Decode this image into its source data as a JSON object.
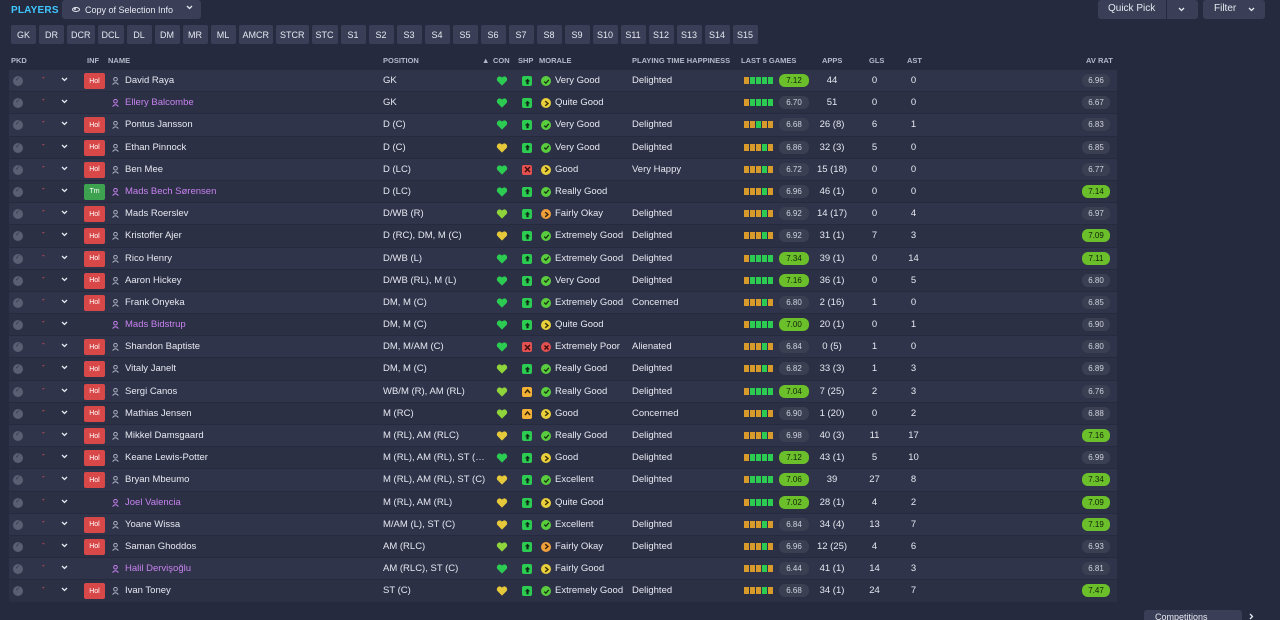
{
  "title": "PLAYERS",
  "view_selector": {
    "label": "Copy of Selection Info",
    "icon": "eye-icon"
  },
  "quick_pick": {
    "label": "Quick Pick"
  },
  "filter": {
    "label": "Filter"
  },
  "position_filters": [
    "GK",
    "DR",
    "DCR",
    "DCL",
    "DL",
    "DM",
    "MR",
    "ML",
    "AMCR",
    "STCR",
    "STC",
    "S1",
    "S2",
    "S3",
    "S4",
    "S5",
    "S6",
    "S7",
    "S8",
    "S9",
    "S10",
    "S11",
    "S12",
    "S13",
    "S14",
    "S15"
  ],
  "columns": {
    "pkd": "PKD",
    "inf": "INF",
    "name": "NAME",
    "position": "POSITION",
    "con": "CON",
    "shp": "SHP",
    "morale": "MORALE",
    "playing_time": "PLAYING TIME HAPPINESS",
    "last5": "LAST 5 GAMES",
    "apps": "APPS",
    "gls": "GLS",
    "ast": "AST",
    "av_rat": "AV RAT"
  },
  "colors": {
    "accent": "#3fc6ff",
    "row_bg": "#30344a",
    "purple_name": "#c782f0",
    "inf_holiday": "#d84848",
    "inf_team": "#3ea351",
    "rating_high": "#6bbf2b",
    "game_bar_green": "#2ccb52",
    "game_bar_amber": "#d89a2a"
  },
  "players": [
    {
      "inf": "Hol",
      "name": "David Raya",
      "purple": false,
      "position": "GK",
      "con": "green",
      "shp": "g",
      "morale_icon": "g",
      "morale": "Very Good",
      "happiness": "Delighted",
      "games": [
        "a",
        "g",
        "g",
        "g",
        "g"
      ],
      "last_rating": "7.12",
      "apps": "44",
      "gls": "0",
      "ast": "0",
      "av_rat": "6.96"
    },
    {
      "inf": "",
      "name": "Ellery Balcombe",
      "purple": true,
      "position": "GK",
      "con": "green",
      "shp": "g",
      "morale_icon": "y",
      "morale": "Quite Good",
      "happiness": "",
      "games": [
        "a",
        "g",
        "g",
        "g",
        "g"
      ],
      "last_rating": "6.70",
      "apps": "51",
      "gls": "0",
      "ast": "0",
      "av_rat": "6.67"
    },
    {
      "inf": "Hol",
      "name": "Pontus Jansson",
      "purple": false,
      "position": "D (C)",
      "con": "green",
      "shp": "g",
      "morale_icon": "g",
      "morale": "Very Good",
      "happiness": "Delighted",
      "games": [
        "a",
        "a",
        "g",
        "a",
        "a"
      ],
      "last_rating": "6.68",
      "apps": "26 (8)",
      "gls": "6",
      "ast": "1",
      "av_rat": "6.83"
    },
    {
      "inf": "Hol",
      "name": "Ethan Pinnock",
      "purple": false,
      "position": "D (C)",
      "con": "yellow",
      "shp": "g",
      "morale_icon": "g",
      "morale": "Very Good",
      "happiness": "Delighted",
      "games": [
        "a",
        "a",
        "a",
        "g",
        "a"
      ],
      "last_rating": "6.86",
      "apps": "32 (3)",
      "gls": "5",
      "ast": "0",
      "av_rat": "6.85"
    },
    {
      "inf": "Hol",
      "name": "Ben Mee",
      "purple": false,
      "position": "D (LC)",
      "con": "green",
      "shp": "r",
      "morale_icon": "y",
      "morale": "Good",
      "happiness": "Very Happy",
      "games": [
        "a",
        "a",
        "a",
        "g",
        "a"
      ],
      "last_rating": "6.72",
      "apps": "15 (18)",
      "gls": "0",
      "ast": "0",
      "av_rat": "6.77"
    },
    {
      "inf": "Tm",
      "name": "Mads Bech Sørensen",
      "purple": true,
      "position": "D (LC)",
      "con": "green",
      "shp": "g",
      "morale_icon": "g",
      "morale": "Really Good",
      "happiness": "",
      "games": [
        "a",
        "a",
        "a",
        "g",
        "a"
      ],
      "last_rating": "6.96",
      "apps": "46 (1)",
      "gls": "0",
      "ast": "0",
      "av_rat": "7.14"
    },
    {
      "inf": "Hol",
      "name": "Mads Roerslev",
      "purple": false,
      "position": "D/WB (R)",
      "con": "lime",
      "shp": "g",
      "morale_icon": "o",
      "morale": "Fairly Okay",
      "happiness": "Delighted",
      "games": [
        "a",
        "a",
        "a",
        "g",
        "a"
      ],
      "last_rating": "6.92",
      "apps": "14 (17)",
      "gls": "0",
      "ast": "4",
      "av_rat": "6.97"
    },
    {
      "inf": "Hol",
      "name": "Kristoffer Ajer",
      "purple": false,
      "position": "D (RC), DM, M (C)",
      "con": "yellow",
      "shp": "g",
      "morale_icon": "g",
      "morale": "Extremely Good",
      "happiness": "Delighted",
      "games": [
        "a",
        "a",
        "a",
        "g",
        "a"
      ],
      "last_rating": "6.92",
      "apps": "31 (1)",
      "gls": "7",
      "ast": "3",
      "av_rat": "7.09"
    },
    {
      "inf": "Hol",
      "name": "Rico Henry",
      "purple": false,
      "position": "D/WB (L)",
      "con": "green",
      "shp": "g",
      "morale_icon": "g",
      "morale": "Extremely Good",
      "happiness": "Delighted",
      "games": [
        "a",
        "g",
        "g",
        "g",
        "g"
      ],
      "last_rating": "7.34",
      "apps": "39 (1)",
      "gls": "0",
      "ast": "14",
      "av_rat": "7.11"
    },
    {
      "inf": "Hol",
      "name": "Aaron Hickey",
      "purple": false,
      "position": "D/WB (RL), M (L)",
      "con": "green",
      "shp": "g",
      "morale_icon": "g",
      "morale": "Very Good",
      "happiness": "Delighted",
      "games": [
        "a",
        "g",
        "g",
        "g",
        "g"
      ],
      "last_rating": "7.16",
      "apps": "36 (1)",
      "gls": "0",
      "ast": "5",
      "av_rat": "6.80"
    },
    {
      "inf": "Hol",
      "name": "Frank Onyeka",
      "purple": false,
      "position": "DM, M (C)",
      "con": "green",
      "shp": "g",
      "morale_icon": "g",
      "morale": "Extremely Good",
      "happiness": "Concerned",
      "games": [
        "a",
        "a",
        "a",
        "g",
        "a"
      ],
      "last_rating": "6.80",
      "apps": "2 (16)",
      "gls": "1",
      "ast": "0",
      "av_rat": "6.85"
    },
    {
      "inf": "",
      "name": "Mads Bidstrup",
      "purple": true,
      "position": "DM, M (C)",
      "con": "green",
      "shp": "g",
      "morale_icon": "y",
      "morale": "Quite Good",
      "happiness": "",
      "games": [
        "a",
        "g",
        "g",
        "g",
        "g"
      ],
      "last_rating": "7.00",
      "apps": "20 (1)",
      "gls": "0",
      "ast": "1",
      "av_rat": "6.90"
    },
    {
      "inf": "Hol",
      "name": "Shandon Baptiste",
      "purple": false,
      "position": "DM, M/AM (C)",
      "con": "green",
      "shp": "r",
      "morale_icon": "r",
      "morale": "Extremely Poor",
      "happiness": "Alienated",
      "games": [
        "a",
        "a",
        "a",
        "g",
        "a"
      ],
      "last_rating": "6.84",
      "apps": "0 (5)",
      "gls": "1",
      "ast": "0",
      "av_rat": "6.80"
    },
    {
      "inf": "Hol",
      "name": "Vitaly Janelt",
      "purple": false,
      "position": "DM, M (C)",
      "con": "lime",
      "shp": "g",
      "morale_icon": "g",
      "morale": "Really Good",
      "happiness": "Delighted",
      "games": [
        "a",
        "a",
        "a",
        "g",
        "a"
      ],
      "last_rating": "6.82",
      "apps": "33 (3)",
      "gls": "1",
      "ast": "3",
      "av_rat": "6.89"
    },
    {
      "inf": "Hol",
      "name": "Sergi Canos",
      "purple": false,
      "position": "WB/M (R), AM (RL)",
      "con": "lime",
      "shp": "o",
      "morale_icon": "g",
      "morale": "Really Good",
      "happiness": "Delighted",
      "games": [
        "a",
        "g",
        "g",
        "g",
        "g"
      ],
      "last_rating": "7.04",
      "apps": "7 (25)",
      "gls": "2",
      "ast": "3",
      "av_rat": "6.76"
    },
    {
      "inf": "Hol",
      "name": "Mathias Jensen",
      "purple": false,
      "position": "M (RC)",
      "con": "lime",
      "shp": "o",
      "morale_icon": "y",
      "morale": "Good",
      "happiness": "Concerned",
      "games": [
        "a",
        "a",
        "a",
        "g",
        "a"
      ],
      "last_rating": "6.90",
      "apps": "1 (20)",
      "gls": "0",
      "ast": "2",
      "av_rat": "6.88"
    },
    {
      "inf": "Hol",
      "name": "Mikkel Damsgaard",
      "purple": false,
      "position": "M (RL), AM (RLC)",
      "con": "yellow",
      "shp": "g",
      "morale_icon": "g",
      "morale": "Really Good",
      "happiness": "Delighted",
      "games": [
        "a",
        "a",
        "a",
        "g",
        "a"
      ],
      "last_rating": "6.98",
      "apps": "40 (3)",
      "gls": "11",
      "ast": "17",
      "av_rat": "7.16"
    },
    {
      "inf": "Hol",
      "name": "Keane Lewis-Potter",
      "purple": false,
      "position": "M (RL), AM (RL), ST (…",
      "con": "green",
      "shp": "g",
      "morale_icon": "y",
      "morale": "Good",
      "happiness": "Delighted",
      "games": [
        "a",
        "g",
        "g",
        "g",
        "g"
      ],
      "last_rating": "7.12",
      "apps": "43 (1)",
      "gls": "5",
      "ast": "10",
      "av_rat": "6.99"
    },
    {
      "inf": "Hol",
      "name": "Bryan Mbeumo",
      "purple": false,
      "position": "M (RL), AM (RL), ST (C)",
      "con": "yellow",
      "shp": "g",
      "morale_icon": "g",
      "morale": "Excellent",
      "happiness": "Delighted",
      "games": [
        "a",
        "g",
        "g",
        "g",
        "g"
      ],
      "last_rating": "7.06",
      "apps": "39",
      "gls": "27",
      "ast": "8",
      "av_rat": "7.34"
    },
    {
      "inf": "",
      "name": "Joel Valencia",
      "purple": true,
      "position": "M (RL), AM (RL)",
      "con": "yellow",
      "shp": "g",
      "morale_icon": "y",
      "morale": "Quite Good",
      "happiness": "",
      "games": [
        "a",
        "g",
        "g",
        "g",
        "g"
      ],
      "last_rating": "7.02",
      "apps": "28 (1)",
      "gls": "4",
      "ast": "2",
      "av_rat": "7.09"
    },
    {
      "inf": "Hol",
      "name": "Yoane Wissa",
      "purple": false,
      "position": "M/AM (L), ST (C)",
      "con": "yellow",
      "shp": "g",
      "morale_icon": "g",
      "morale": "Excellent",
      "happiness": "Delighted",
      "games": [
        "a",
        "a",
        "a",
        "g",
        "a"
      ],
      "last_rating": "6.84",
      "apps": "34 (4)",
      "gls": "13",
      "ast": "7",
      "av_rat": "7.19"
    },
    {
      "inf": "Hol",
      "name": "Saman Ghoddos",
      "purple": false,
      "position": "AM (RLC)",
      "con": "lime",
      "shp": "g",
      "morale_icon": "o",
      "morale": "Fairly Okay",
      "happiness": "Delighted",
      "games": [
        "a",
        "a",
        "a",
        "g",
        "a"
      ],
      "last_rating": "6.96",
      "apps": "12 (25)",
      "gls": "4",
      "ast": "6",
      "av_rat": "6.93"
    },
    {
      "inf": "",
      "name": "Halil Dervişoğlu",
      "purple": true,
      "position": "AM (RLC), ST (C)",
      "con": "green",
      "shp": "g",
      "morale_icon": "y",
      "morale": "Fairly Good",
      "happiness": "",
      "games": [
        "a",
        "a",
        "a",
        "g",
        "a"
      ],
      "last_rating": "6.44",
      "apps": "41 (1)",
      "gls": "14",
      "ast": "3",
      "av_rat": "6.81"
    },
    {
      "inf": "Hol",
      "name": "Ivan Toney",
      "purple": false,
      "position": "ST (C)",
      "con": "yellow",
      "shp": "g",
      "morale_icon": "g",
      "morale": "Extremely Good",
      "happiness": "Delighted",
      "games": [
        "a",
        "a",
        "a",
        "g",
        "a"
      ],
      "last_rating": "6.68",
      "apps": "34 (1)",
      "gls": "24",
      "ast": "7",
      "av_rat": "7.47"
    }
  ],
  "competitions_button": {
    "label": "Competitions"
  }
}
